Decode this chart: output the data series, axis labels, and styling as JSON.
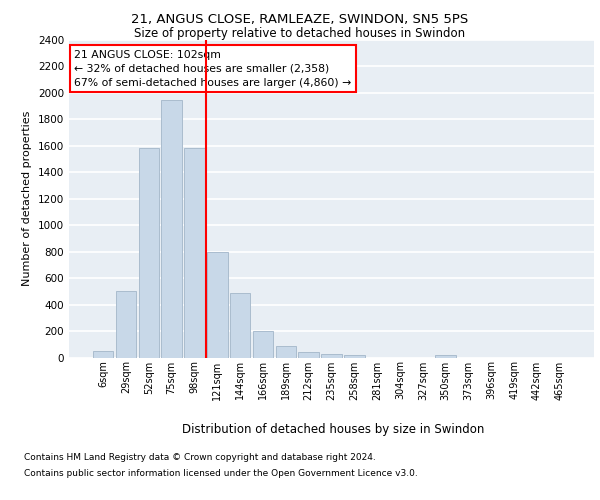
{
  "title1": "21, ANGUS CLOSE, RAMLEAZE, SWINDON, SN5 5PS",
  "title2": "Size of property relative to detached houses in Swindon",
  "xlabel": "Distribution of detached houses by size in Swindon",
  "ylabel": "Number of detached properties",
  "categories": [
    "6sqm",
    "29sqm",
    "52sqm",
    "75sqm",
    "98sqm",
    "121sqm",
    "144sqm",
    "166sqm",
    "189sqm",
    "212sqm",
    "235sqm",
    "258sqm",
    "281sqm",
    "304sqm",
    "327sqm",
    "350sqm",
    "373sqm",
    "396sqm",
    "419sqm",
    "442sqm",
    "465sqm"
  ],
  "values": [
    50,
    500,
    1580,
    1950,
    1580,
    800,
    490,
    200,
    90,
    40,
    30,
    20,
    0,
    0,
    0,
    20,
    0,
    0,
    0,
    0,
    0
  ],
  "bar_color": "#c8d8e8",
  "bar_edge_color": "#aabcce",
  "vline_color": "red",
  "annotation_text": "21 ANGUS CLOSE: 102sqm\n← 32% of detached houses are smaller (2,358)\n67% of semi-detached houses are larger (4,860) →",
  "annotation_box_color": "white",
  "annotation_box_edge": "red",
  "footer1": "Contains HM Land Registry data © Crown copyright and database right 2024.",
  "footer2": "Contains public sector information licensed under the Open Government Licence v3.0.",
  "ylim": [
    0,
    2400
  ],
  "yticks": [
    0,
    200,
    400,
    600,
    800,
    1000,
    1200,
    1400,
    1600,
    1800,
    2000,
    2200,
    2400
  ],
  "background_color": "#e8eef4",
  "grid_color": "white"
}
